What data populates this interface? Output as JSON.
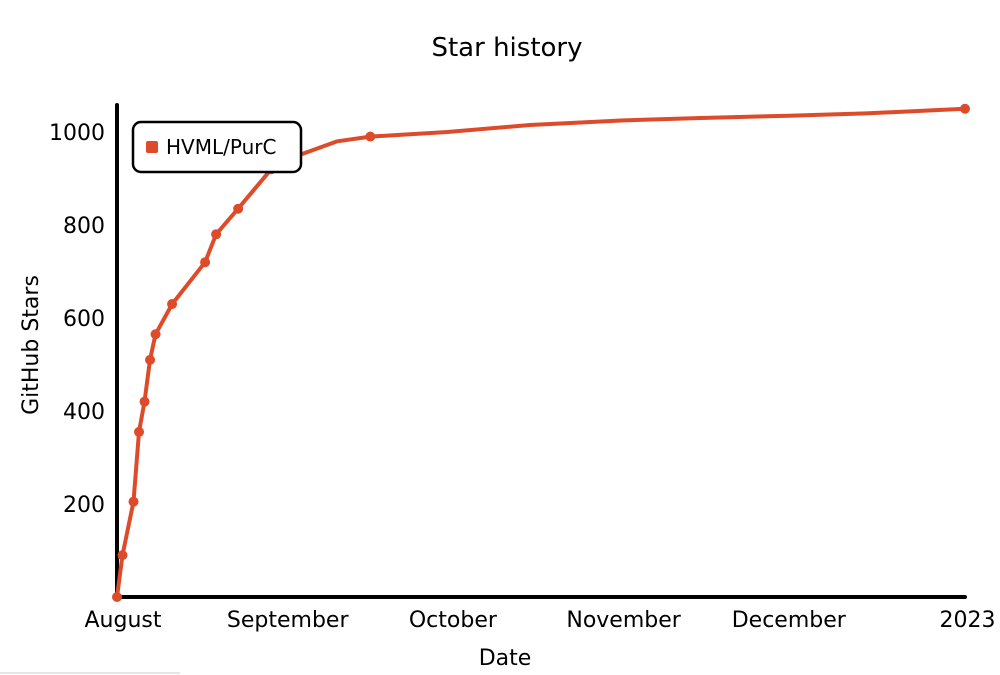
{
  "chart_data": {
    "type": "line",
    "title": "Star history",
    "xlabel": "Date",
    "ylabel": "GitHub Stars",
    "x_tick_labels": [
      "August",
      "September",
      "October",
      "November",
      "December",
      "2023"
    ],
    "x_tick_dates": [
      "2022-08-01",
      "2022-09-01",
      "2022-10-01",
      "2022-11-01",
      "2022-12-01",
      "2023-01-01"
    ],
    "y_tick_labels": [
      "200",
      "400",
      "600",
      "800",
      "1000"
    ],
    "y_tick_values": [
      200,
      400,
      600,
      800,
      1000
    ],
    "xlim": [
      "2022-08-01",
      "2023-01-02"
    ],
    "ylim": [
      0,
      1050
    ],
    "legend_position": "top-left",
    "grid": false,
    "series": [
      {
        "name": "HVML/PurC",
        "color": "#dd4b2a",
        "points": [
          {
            "x": "2022-08-01",
            "y": 0
          },
          {
            "x": "2022-08-02",
            "y": 90
          },
          {
            "x": "2022-08-04",
            "y": 205
          },
          {
            "x": "2022-08-05",
            "y": 355
          },
          {
            "x": "2022-08-06",
            "y": 420
          },
          {
            "x": "2022-08-07",
            "y": 510
          },
          {
            "x": "2022-08-08",
            "y": 565
          },
          {
            "x": "2022-08-11",
            "y": 630
          },
          {
            "x": "2022-08-17",
            "y": 720
          },
          {
            "x": "2022-08-19",
            "y": 780
          },
          {
            "x": "2022-08-23",
            "y": 835
          },
          {
            "x": "2022-08-29",
            "y": 920
          },
          {
            "x": "2022-09-03",
            "y": 950
          },
          {
            "x": "2022-09-10",
            "y": 980
          },
          {
            "x": "2022-09-16",
            "y": 990
          },
          {
            "x": "2022-09-30",
            "y": 1000
          },
          {
            "x": "2022-10-15",
            "y": 1015
          },
          {
            "x": "2022-11-01",
            "y": 1025
          },
          {
            "x": "2022-11-15",
            "y": 1030
          },
          {
            "x": "2022-12-01",
            "y": 1035
          },
          {
            "x": "2022-12-15",
            "y": 1040
          },
          {
            "x": "2023-01-02",
            "y": 1050
          }
        ],
        "marker_dates": [
          "2022-08-01",
          "2022-08-02",
          "2022-08-04",
          "2022-08-05",
          "2022-08-06",
          "2022-08-07",
          "2022-08-08",
          "2022-08-11",
          "2022-08-17",
          "2022-08-19",
          "2022-08-23",
          "2022-08-29",
          "2022-09-16",
          "2023-01-02"
        ]
      }
    ]
  }
}
